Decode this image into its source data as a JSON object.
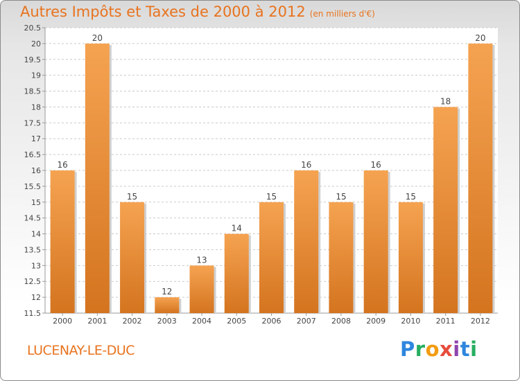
{
  "header": {
    "title": "Autres Impôts et Taxes de 2000 à 2012",
    "subtitle": "(en milliers d'€)"
  },
  "footer": {
    "commune": "LUCENAY-LE-DUC",
    "brand_letters": [
      "P",
      "r",
      "o",
      "x",
      "i",
      "t",
      "i"
    ],
    "brand_colors": [
      "#2e86de",
      "#27ae60",
      "#f39c12",
      "#e74c3c",
      "#8e44ad",
      "#2e86de",
      "#27ae60"
    ]
  },
  "colors": {
    "accent": "#e8731e",
    "bar_top": "#f5a351",
    "bar_bottom": "#d4741f"
  },
  "chart_data": {
    "type": "bar",
    "categories": [
      "2000",
      "2001",
      "2002",
      "2003",
      "2004",
      "2005",
      "2006",
      "2007",
      "2008",
      "2009",
      "2010",
      "2011",
      "2012"
    ],
    "values": [
      16,
      20,
      15,
      12,
      13,
      14,
      15,
      16,
      15,
      16,
      15,
      18,
      20
    ],
    "data_labels": [
      "16",
      "20",
      "15",
      "12",
      "13",
      "14",
      "15",
      "16",
      "15",
      "16",
      "15",
      "18",
      "20"
    ],
    "y_ticks": [
      "11.5",
      "12",
      "12.5",
      "13",
      "13.5",
      "14",
      "14.5",
      "15",
      "15.5",
      "16",
      "16.5",
      "17",
      "17.5",
      "18",
      "18.5",
      "19",
      "19.5",
      "20",
      "20.5"
    ],
    "ylim": [
      11.5,
      20.5
    ],
    "grid": "horizontal dashed",
    "title": "Autres Impôts et Taxes de 2000 à 2012",
    "xlabel": "",
    "ylabel": ""
  }
}
